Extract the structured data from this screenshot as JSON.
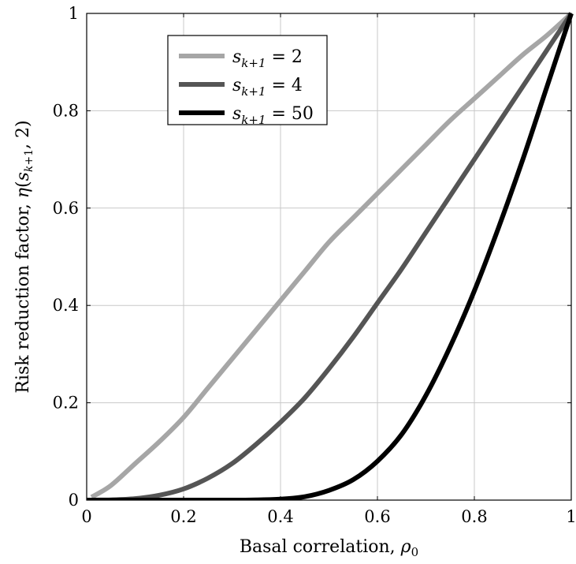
{
  "chart_data": {
    "type": "line",
    "xlabel": "Basal correlation, ρ₀",
    "ylabel": "Risk reduction factor, η(s_{k+1}, 2)",
    "xlim": [
      0,
      1
    ],
    "ylim": [
      0,
      1
    ],
    "xticks": [
      "0",
      "0.2",
      "0.4",
      "0.6",
      "0.8",
      "1"
    ],
    "yticks": [
      "0",
      "0.2",
      "0.4",
      "0.6",
      "0.8",
      "1"
    ],
    "grid": true,
    "legend_position": "top-left",
    "series": [
      {
        "name": "s_{k+1} = 2",
        "color": "#a6a6a6",
        "x": [
          0.01,
          0.05,
          0.1,
          0.15,
          0.2,
          0.25,
          0.3,
          0.35,
          0.4,
          0.45,
          0.5,
          0.55,
          0.6,
          0.65,
          0.7,
          0.75,
          0.8,
          0.85,
          0.9,
          0.95,
          1.0
        ],
        "y": [
          0.006,
          0.03,
          0.075,
          0.12,
          0.17,
          0.23,
          0.29,
          0.35,
          0.41,
          0.47,
          0.53,
          0.58,
          0.63,
          0.68,
          0.73,
          0.78,
          0.825,
          0.87,
          0.915,
          0.955,
          1.0
        ]
      },
      {
        "name": "s_{k+1} = 4",
        "color": "#555555",
        "x": [
          0.0,
          0.05,
          0.1,
          0.15,
          0.2,
          0.25,
          0.3,
          0.35,
          0.4,
          0.45,
          0.5,
          0.55,
          0.6,
          0.65,
          0.7,
          0.75,
          0.8,
          0.85,
          0.9,
          0.95,
          1.0
        ],
        "y": [
          0.0,
          0.0005,
          0.003,
          0.01,
          0.023,
          0.045,
          0.075,
          0.115,
          0.16,
          0.21,
          0.27,
          0.335,
          0.405,
          0.475,
          0.55,
          0.625,
          0.7,
          0.775,
          0.85,
          0.925,
          1.0
        ]
      },
      {
        "name": "s_{k+1} = 50",
        "color": "#000000",
        "x": [
          0.0,
          0.1,
          0.2,
          0.3,
          0.35,
          0.4,
          0.45,
          0.5,
          0.55,
          0.6,
          0.65,
          0.7,
          0.75,
          0.8,
          0.85,
          0.9,
          0.95,
          1.0
        ],
        "y": [
          0.0,
          0.0,
          0.0,
          0.0,
          0.0005,
          0.002,
          0.007,
          0.02,
          0.042,
          0.08,
          0.135,
          0.215,
          0.315,
          0.43,
          0.56,
          0.7,
          0.85,
          1.0
        ]
      }
    ]
  }
}
